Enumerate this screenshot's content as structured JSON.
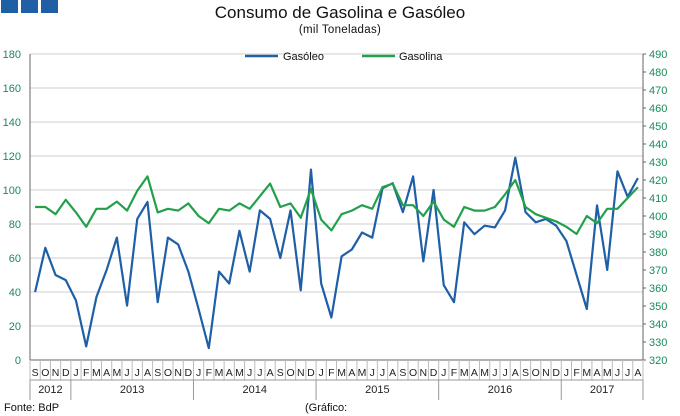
{
  "header": {
    "title": "Consumo de Gasolina e Gasóleo",
    "subtitle": "(mil Toneladas)",
    "brand_color": "#1f5fa6"
  },
  "footer": {
    "source": "Fonte: BdP",
    "note": "(Gráfico:"
  },
  "chart_data": {
    "type": "line",
    "x": [
      "S",
      "O",
      "N",
      "D",
      "J",
      "F",
      "M",
      "A",
      "M",
      "J",
      "J",
      "A",
      "S",
      "O",
      "N",
      "D",
      "J",
      "F",
      "M",
      "A",
      "M",
      "J",
      "J",
      "A",
      "S",
      "O",
      "N",
      "D",
      "J",
      "F",
      "M",
      "A",
      "M",
      "J",
      "J",
      "A",
      "S",
      "O",
      "N",
      "D",
      "J",
      "F",
      "M",
      "A",
      "M",
      "J",
      "J",
      "A",
      "S",
      "O",
      "N",
      "D",
      "J",
      "F",
      "M",
      "A",
      "M",
      "J",
      "J",
      "A"
    ],
    "year_labels": [
      {
        "label": "2012",
        "from": 0,
        "to": 3
      },
      {
        "label": "2013",
        "from": 4,
        "to": 15
      },
      {
        "label": "2014",
        "from": 16,
        "to": 27
      },
      {
        "label": "2015",
        "from": 28,
        "to": 39
      },
      {
        "label": "2016",
        "from": 40,
        "to": 51
      },
      {
        "label": "2017",
        "from": 52,
        "to": 59
      }
    ],
    "y_left": {
      "min": 0,
      "max": 180,
      "step": 20,
      "ticks": [
        "0",
        "20",
        "40",
        "60",
        "80",
        "100",
        "120",
        "140",
        "160",
        "180"
      ]
    },
    "y_right": {
      "min": 320,
      "max": 490,
      "step": 10,
      "ticks": [
        "320",
        "330",
        "340",
        "350",
        "360",
        "370",
        "380",
        "390",
        "400",
        "410",
        "420",
        "430",
        "440",
        "450",
        "460",
        "470",
        "480",
        "490"
      ]
    },
    "series": [
      {
        "name": "Gasóleo",
        "axis": "left",
        "color": "#1f5fa6",
        "values": [
          40,
          66,
          50,
          47,
          35,
          8,
          37,
          53,
          72,
          32,
          83,
          93,
          34,
          72,
          68,
          52,
          30,
          7,
          52,
          45,
          76,
          52,
          88,
          83,
          60,
          88,
          41,
          112,
          45,
          25,
          61,
          65,
          75,
          72,
          101,
          104,
          87,
          108,
          58,
          100,
          44,
          34,
          81,
          74,
          79,
          78,
          88,
          119,
          87,
          81,
          83,
          79,
          70,
          50,
          30,
          91,
          53,
          111,
          96,
          107
        ]
      },
      {
        "name": "Gasolina",
        "axis": "right",
        "color": "#22a04b",
        "values": [
          405,
          405,
          401,
          409,
          402,
          394,
          404,
          404,
          408,
          403,
          414,
          422,
          402,
          404,
          403,
          407,
          400,
          396,
          404,
          403,
          407,
          404,
          411,
          418,
          405,
          407,
          399,
          415,
          398,
          392,
          401,
          403,
          406,
          404,
          416,
          418,
          406,
          406,
          400,
          408,
          398,
          394,
          405,
          403,
          403,
          405,
          412,
          420,
          405,
          401,
          399,
          397,
          394,
          390,
          400,
          396,
          404,
          404,
          410,
          416
        ]
      }
    ],
    "legend": {
      "placement": "top-center"
    },
    "grid": "horizontal"
  }
}
